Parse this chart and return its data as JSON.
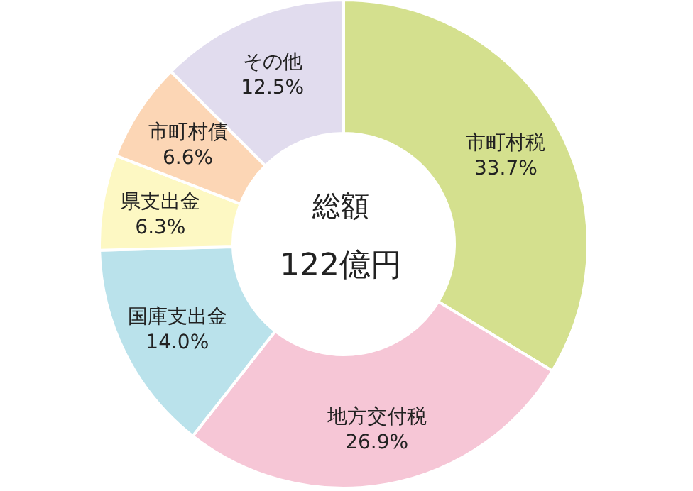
{
  "chart_data": {
    "type": "donut",
    "categories": [
      "市町村税",
      "地方交付税",
      "国庫支出金",
      "県支出金",
      "市町村債",
      "その他"
    ],
    "values": [
      33.7,
      26.9,
      14.0,
      6.3,
      6.6,
      12.5
    ],
    "colors": [
      "#d4e08e",
      "#f6c6d6",
      "#bae2eb",
      "#fdf8c3",
      "#fcd6b5",
      "#e1dcee"
    ],
    "value_labels": [
      "33.7%",
      "26.9%",
      "14.0%",
      "6.3%",
      "6.6%",
      "12.5%"
    ],
    "annotations": [
      "総額",
      "122億円"
    ]
  }
}
